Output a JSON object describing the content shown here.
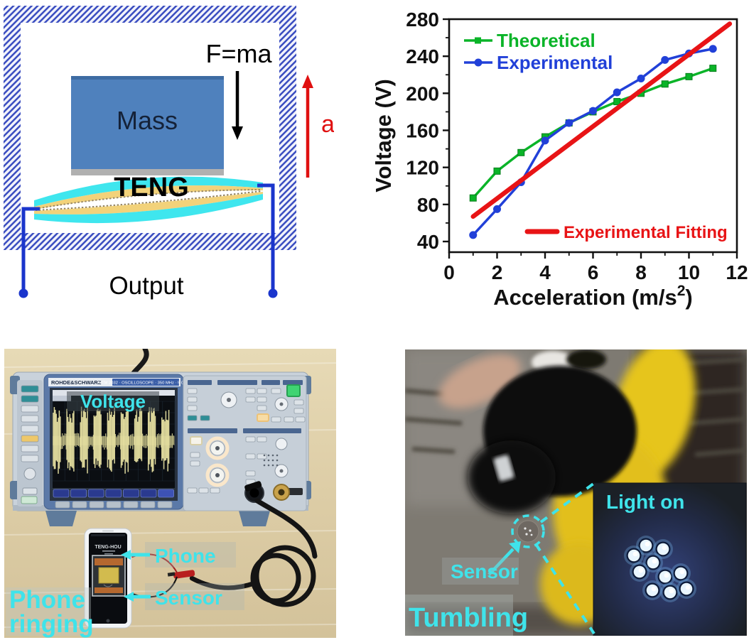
{
  "figure": {
    "background": "#ffffff"
  },
  "schematic": {
    "force_label": "F=ma",
    "mass_label": "Mass",
    "teng_label": "TENG",
    "output_label": "Output",
    "acceleration_arrow_label": "a",
    "colors": {
      "mass_fill": "#4f81bd",
      "frame_hatch_blue": "#3a4dc0",
      "electrode_cyan": "#3fe6ee",
      "film_yellow": "#f2d27a",
      "wire_blue": "#1a35cc",
      "accel_arrow_red": "#e01010"
    }
  },
  "chart_data": {
    "type": "line",
    "title": "",
    "xlabel": "Acceleration (m/s²)",
    "ylabel": "Voltage (V)",
    "xlim": [
      0,
      12
    ],
    "ylim": [
      40,
      280
    ],
    "x_ticks": [
      0,
      2,
      4,
      6,
      8,
      10,
      12
    ],
    "y_ticks": [
      40,
      80,
      120,
      160,
      200,
      240,
      280
    ],
    "grid": false,
    "legend_position": "upper-left",
    "x": [
      1,
      2,
      3,
      4,
      5,
      6,
      7,
      8,
      9,
      10,
      11
    ],
    "series": [
      {
        "name": "Theoretical",
        "color": "#0ab428",
        "marker": "square",
        "values": [
          87,
          116,
          136,
          153,
          168,
          180,
          191,
          200,
          210,
          218,
          227
        ]
      },
      {
        "name": "Experimental",
        "color": "#2140d8",
        "marker": "circle",
        "values": [
          47,
          75,
          104,
          149,
          168,
          181,
          201,
          216,
          236,
          243,
          248
        ]
      }
    ],
    "fit_line": {
      "name": "Experimental Fitting",
      "color": "#e81416",
      "x": [
        1,
        11.7
      ],
      "values": [
        67,
        275
      ]
    }
  },
  "oscilloscope_photo": {
    "brand": "ROHDE&SCHWARZ",
    "model_strip": "RTM 2032 · OSCILLOSCOPE · 350 MHz · 5 GSa/s",
    "screen_label": "Voltage",
    "phone_label": "Phone",
    "sensor_label": "Sensor",
    "caption_line1": "Phone",
    "caption_line2": "ringing",
    "phone_screen_text": "TENG-HOU",
    "annotation_color": "#3fe3ea"
  },
  "tumbling_photo": {
    "inset_label": "Light on",
    "sensor_label": "Sensor",
    "caption": "Tumbling",
    "annotation_color": "#3fe3ea",
    "led_count": 10,
    "led_positions": [
      [
        339,
        276
      ],
      [
        363,
        281
      ],
      [
        322,
        290
      ],
      [
        349,
        300
      ],
      [
        330,
        313
      ],
      [
        366,
        320
      ],
      [
        388,
        315
      ],
      [
        348,
        339
      ],
      [
        373,
        342
      ],
      [
        396,
        337
      ]
    ]
  }
}
